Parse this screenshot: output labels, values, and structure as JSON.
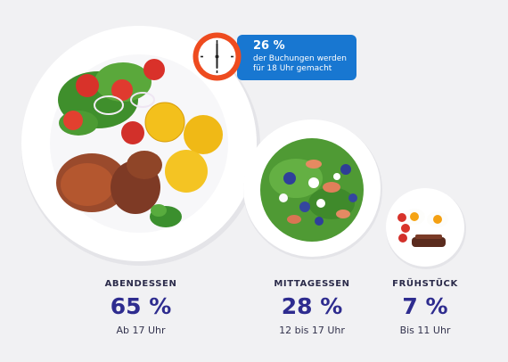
{
  "callout": {
    "percent": "26 %",
    "text": "der Buchungen werden für 18 Uhr gemacht",
    "clock_time": "18:00"
  },
  "meals": [
    {
      "name": "ABENDESSEN",
      "percent": "65 %",
      "time": "Ab 17 Uhr"
    },
    {
      "name": "MITTAGESSEN",
      "percent": "28 %",
      "time": "12 bis 17 Uhr"
    },
    {
      "name": "FRÜHSTÜCK",
      "percent": "7 %",
      "time": "Bis 11 Uhr"
    }
  ],
  "colors": {
    "background": "#f1f1f3",
    "accent_blue": "#1877d1",
    "clock_ring": "#ee4b1f",
    "percent_text": "#2e2c8f"
  }
}
